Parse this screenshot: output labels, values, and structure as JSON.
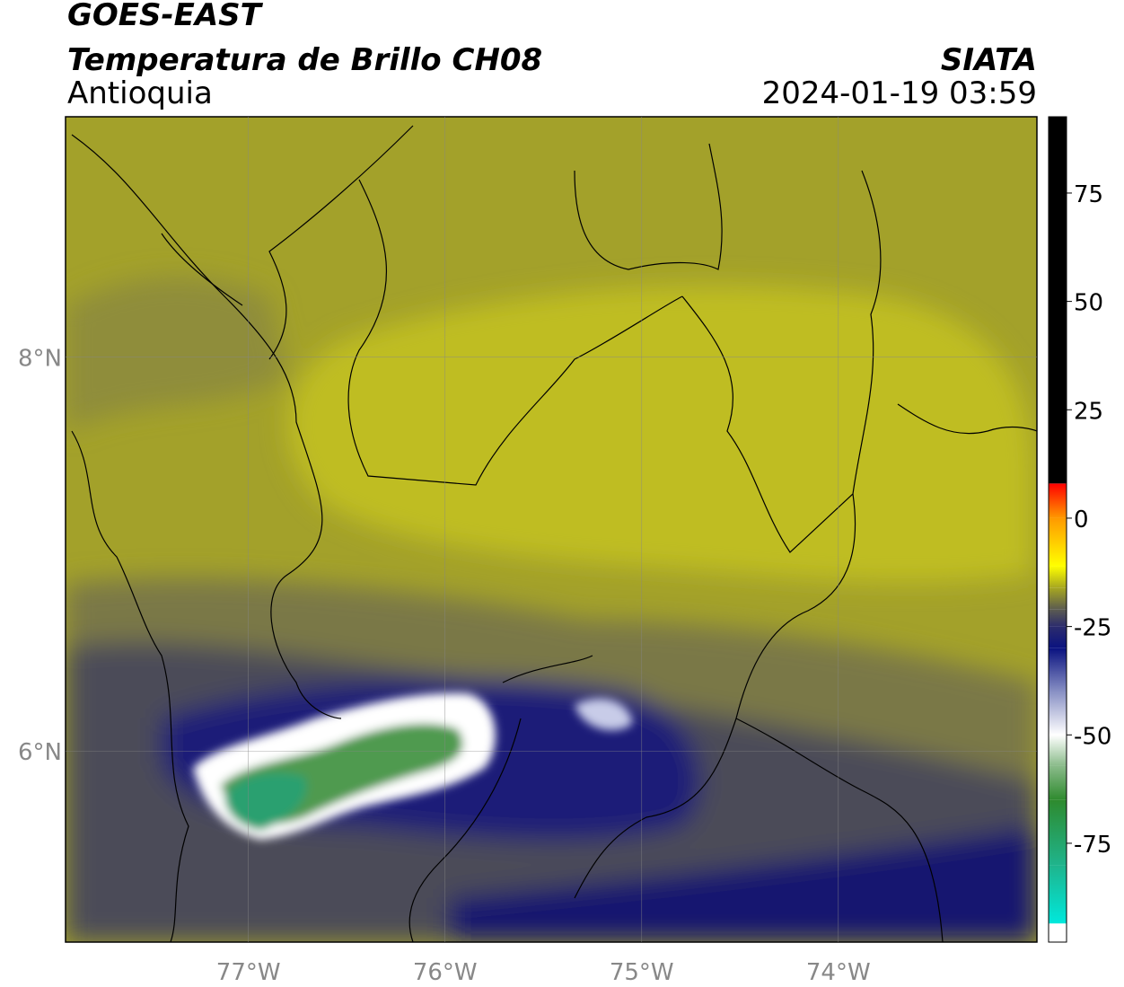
{
  "header": {
    "title": "GOES-EAST",
    "subtitle": "Temperatura de Brillo CH08",
    "region": "Antioquia",
    "source": "SIATA",
    "datetime": "2024-01-19 03:59"
  },
  "map": {
    "xlim": [
      -77.93,
      -72.99
    ],
    "ylim": [
      5.03,
      9.22
    ],
    "xticks": [
      {
        "value": -77,
        "label": "77°W"
      },
      {
        "value": -76,
        "label": "76°W"
      },
      {
        "value": -75,
        "label": "75°W"
      },
      {
        "value": -74,
        "label": "74°W"
      }
    ],
    "yticks": [
      {
        "value": 6,
        "label": "6°N"
      },
      {
        "value": 8,
        "label": "8°N"
      }
    ],
    "grid": true
  },
  "colorbar": {
    "lim": [
      -97.8,
      92.6
    ],
    "ticks": [
      -75,
      -50,
      -25,
      0,
      25,
      50,
      75
    ],
    "stops": [
      {
        "value": -97.8,
        "color": "#ffffff"
      },
      {
        "value": -93.5,
        "color": "#ffffff"
      },
      {
        "value": -93.5,
        "color": "#00e8dc"
      },
      {
        "value": -80,
        "color": "#1fb48c"
      },
      {
        "value": -65,
        "color": "#2e8a2e"
      },
      {
        "value": -57,
        "color": "#8cbc8c"
      },
      {
        "value": -50,
        "color": "#ffffff"
      },
      {
        "value": -40,
        "color": "#8890c4"
      },
      {
        "value": -30,
        "color": "#0a1280"
      },
      {
        "value": -25,
        "color": "#2c2c6c"
      },
      {
        "value": -21,
        "color": "#5c5c50"
      },
      {
        "value": -16,
        "color": "#a8a820"
      },
      {
        "value": -11,
        "color": "#ffff00"
      },
      {
        "value": 0,
        "color": "#ff9900"
      },
      {
        "value": 8,
        "color": "#ff0000"
      },
      {
        "value": 8,
        "color": "#000000"
      },
      {
        "value": 92.6,
        "color": "#000000"
      }
    ]
  }
}
